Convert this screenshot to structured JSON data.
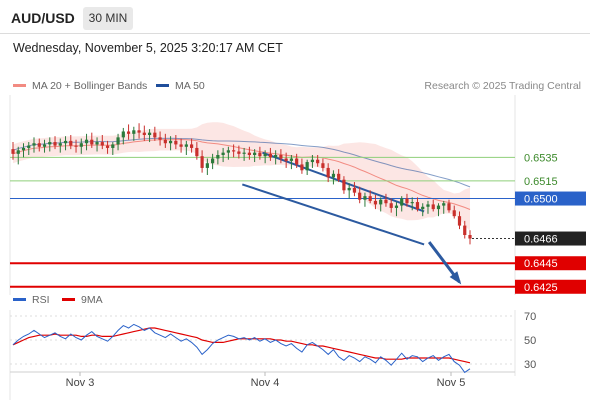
{
  "header": {
    "pair": "AUD/USD",
    "timeframe": "30 MIN",
    "datetime": "Wednesday, November 5, 2025 3:20:17 AM CET"
  },
  "legend": {
    "items": [
      {
        "label": "MA 20 + Bollinger Bands",
        "color": "#f28b82"
      },
      {
        "label": "MA 50",
        "color": "#1f4e9b"
      }
    ],
    "credit": "Research © 2025 Trading Central"
  },
  "colors": {
    "up": "#2b7a3c",
    "down": "#c9302c",
    "ma20": "#f28b82",
    "ma50": "#1f4e9b",
    "resistance": "#8fcf7a",
    "support": "#e00000",
    "pivot": "#2a62c9",
    "channel": "#2c5aa0"
  },
  "chart_data": [
    {
      "type": "candlestick",
      "ylim": [
        0.6418,
        0.6588
      ],
      "x_ticks": [
        "Nov 3",
        "Nov 4",
        "Nov 5"
      ],
      "levels": [
        {
          "value": 0.6535,
          "label": "0.6535",
          "kind": "resistance"
        },
        {
          "value": 0.6515,
          "label": "0.6515",
          "kind": "resistance"
        },
        {
          "value": 0.65,
          "label": "0.6500",
          "kind": "pivot"
        },
        {
          "value": 0.6466,
          "label": "0.6466",
          "kind": "last"
        },
        {
          "value": 0.6445,
          "label": "0.6445",
          "kind": "support"
        },
        {
          "value": 0.6425,
          "label": "0.6425",
          "kind": "support"
        }
      ],
      "channel": {
        "upper": [
          [
            0.5,
            0.6539
          ],
          [
            0.82,
            0.6489
          ]
        ],
        "lower": [
          [
            0.46,
            0.6512
          ],
          [
            0.82,
            0.6461
          ]
        ]
      },
      "forecast_arrow": [
        [
          0.83,
          0.6463
        ],
        [
          0.89,
          0.6429
        ]
      ],
      "candles": [
        [
          0.6542,
          0.6548,
          0.6533,
          0.6538
        ],
        [
          0.6538,
          0.6544,
          0.6529,
          0.6541
        ],
        [
          0.6541,
          0.6547,
          0.6535,
          0.6543
        ],
        [
          0.6543,
          0.6548,
          0.6537,
          0.6545
        ],
        [
          0.6545,
          0.6552,
          0.6539,
          0.6547
        ],
        [
          0.6547,
          0.6551,
          0.654,
          0.6544
        ],
        [
          0.6544,
          0.655,
          0.6539,
          0.6546
        ],
        [
          0.6546,
          0.6552,
          0.654,
          0.6548
        ],
        [
          0.6548,
          0.6553,
          0.6542,
          0.6545
        ],
        [
          0.6545,
          0.6551,
          0.6539,
          0.6547
        ],
        [
          0.6547,
          0.6553,
          0.6541,
          0.6549
        ],
        [
          0.6549,
          0.6554,
          0.6542,
          0.6545
        ],
        [
          0.6545,
          0.655,
          0.6539,
          0.6544
        ],
        [
          0.6544,
          0.6551,
          0.6538,
          0.6547
        ],
        [
          0.6547,
          0.6555,
          0.6541,
          0.655
        ],
        [
          0.655,
          0.6556,
          0.6543,
          0.6546
        ],
        [
          0.6546,
          0.6552,
          0.654,
          0.6548
        ],
        [
          0.6548,
          0.6554,
          0.6542,
          0.6545
        ],
        [
          0.6545,
          0.6549,
          0.6538,
          0.6543
        ],
        [
          0.6543,
          0.6548,
          0.6537,
          0.6546
        ],
        [
          0.6546,
          0.6555,
          0.6541,
          0.6552
        ],
        [
          0.6552,
          0.656,
          0.6546,
          0.6557
        ],
        [
          0.6557,
          0.6563,
          0.655,
          0.6555
        ],
        [
          0.6555,
          0.6561,
          0.6549,
          0.6558
        ],
        [
          0.6558,
          0.6564,
          0.6551,
          0.6556
        ],
        [
          0.6556,
          0.6562,
          0.6549,
          0.6554
        ],
        [
          0.6554,
          0.6559,
          0.6548,
          0.6556
        ],
        [
          0.6556,
          0.6561,
          0.6549,
          0.6552
        ],
        [
          0.6552,
          0.6557,
          0.6545,
          0.655
        ],
        [
          0.655,
          0.6555,
          0.6543,
          0.6547
        ],
        [
          0.6547,
          0.6553,
          0.6541,
          0.6549
        ],
        [
          0.6549,
          0.6554,
          0.6542,
          0.6546
        ],
        [
          0.6546,
          0.6551,
          0.6539,
          0.6544
        ],
        [
          0.6544,
          0.6549,
          0.6537,
          0.6546
        ],
        [
          0.6546,
          0.6551,
          0.6539,
          0.6543
        ],
        [
          0.6543,
          0.6548,
          0.6533,
          0.6536
        ],
        [
          0.6536,
          0.6541,
          0.6522,
          0.6526
        ],
        [
          0.6526,
          0.6534,
          0.652,
          0.653
        ],
        [
          0.653,
          0.6538,
          0.6525,
          0.6534
        ],
        [
          0.6534,
          0.6541,
          0.6529,
          0.6537
        ],
        [
          0.6537,
          0.6543,
          0.6531,
          0.6539
        ],
        [
          0.6539,
          0.6544,
          0.6533,
          0.6541
        ],
        [
          0.6541,
          0.6546,
          0.6535,
          0.654
        ],
        [
          0.654,
          0.6545,
          0.6534,
          0.6538
        ],
        [
          0.6538,
          0.6543,
          0.6532,
          0.6539
        ],
        [
          0.6539,
          0.6544,
          0.6533,
          0.6537
        ],
        [
          0.6537,
          0.6542,
          0.6531,
          0.6539
        ],
        [
          0.6539,
          0.6544,
          0.6533,
          0.6536
        ],
        [
          0.6536,
          0.6541,
          0.653,
          0.6538
        ],
        [
          0.6538,
          0.6543,
          0.6532,
          0.6535
        ],
        [
          0.6535,
          0.6541,
          0.6529,
          0.6537
        ],
        [
          0.6537,
          0.6542,
          0.653,
          0.6534
        ],
        [
          0.6534,
          0.6539,
          0.6526,
          0.6532
        ],
        [
          0.6532,
          0.6537,
          0.6525,
          0.6534
        ],
        [
          0.6534,
          0.6538,
          0.6526,
          0.6529
        ],
        [
          0.6529,
          0.6534,
          0.6521,
          0.6524
        ],
        [
          0.6524,
          0.6533,
          0.652,
          0.6531
        ],
        [
          0.6531,
          0.6537,
          0.6526,
          0.6533
        ],
        [
          0.6533,
          0.6537,
          0.6527,
          0.653
        ],
        [
          0.653,
          0.6534,
          0.6523,
          0.6526
        ],
        [
          0.6526,
          0.653,
          0.6514,
          0.6518
        ],
        [
          0.6518,
          0.6524,
          0.6512,
          0.6521
        ],
        [
          0.6521,
          0.6525,
          0.6514,
          0.6516
        ],
        [
          0.6516,
          0.6519,
          0.6504,
          0.6507
        ],
        [
          0.6507,
          0.6513,
          0.65,
          0.6509
        ],
        [
          0.6509,
          0.6514,
          0.6502,
          0.6505
        ],
        [
          0.6505,
          0.651,
          0.6496,
          0.6499
        ],
        [
          0.6499,
          0.6505,
          0.6493,
          0.6502
        ],
        [
          0.6502,
          0.6507,
          0.6496,
          0.6498
        ],
        [
          0.6498,
          0.6503,
          0.6491,
          0.6495
        ],
        [
          0.6495,
          0.6501,
          0.6489,
          0.6499
        ],
        [
          0.6499,
          0.6504,
          0.6493,
          0.6496
        ],
        [
          0.6496,
          0.65,
          0.6488,
          0.6492
        ],
        [
          0.6492,
          0.6497,
          0.6485,
          0.6494
        ],
        [
          0.6494,
          0.6502,
          0.6489,
          0.65
        ],
        [
          0.65,
          0.6504,
          0.6493,
          0.6496
        ],
        [
          0.6496,
          0.6501,
          0.649,
          0.6497
        ],
        [
          0.6497,
          0.6501,
          0.6489,
          0.6491
        ],
        [
          0.6491,
          0.6496,
          0.6485,
          0.6493
        ],
        [
          0.6493,
          0.6498,
          0.6487,
          0.6495
        ],
        [
          0.6495,
          0.6499,
          0.6489,
          0.6491
        ],
        [
          0.6491,
          0.6496,
          0.6485,
          0.6494
        ],
        [
          0.6494,
          0.6498,
          0.6487,
          0.6496
        ],
        [
          0.6496,
          0.6499,
          0.6488,
          0.649
        ],
        [
          0.649,
          0.6494,
          0.6483,
          0.6485
        ],
        [
          0.6485,
          0.6489,
          0.6474,
          0.6477
        ],
        [
          0.6477,
          0.6481,
          0.6466,
          0.6469
        ],
        [
          0.6469,
          0.6473,
          0.6461,
          0.6466
        ]
      ]
    },
    {
      "type": "line",
      "series": [
        {
          "name": "RSI",
          "color": "#2a62c9"
        },
        {
          "name": "9MA",
          "color": "#e00000"
        }
      ],
      "ylim": [
        25,
        75
      ],
      "y_ticks": [
        "70",
        "50",
        "30"
      ],
      "rsi": [
        46,
        50,
        53,
        55,
        58,
        55,
        52,
        54,
        56,
        53,
        51,
        55,
        52,
        50,
        54,
        57,
        53,
        51,
        49,
        53,
        58,
        62,
        60,
        63,
        61,
        58,
        60,
        56,
        54,
        52,
        55,
        52,
        49,
        51,
        48,
        44,
        38,
        42,
        47,
        50,
        52,
        54,
        53,
        51,
        52,
        50,
        52,
        49,
        51,
        48,
        50,
        47,
        45,
        47,
        43,
        40,
        46,
        48,
        45,
        42,
        38,
        42,
        36,
        33,
        37,
        35,
        32,
        36,
        34,
        31,
        36,
        33,
        29,
        34,
        39,
        34,
        37,
        36,
        32,
        35,
        37,
        33,
        36,
        38,
        32,
        29,
        23,
        26
      ],
      "ma9": [
        46,
        48,
        50,
        52,
        53,
        54,
        54,
        54,
        55,
        54,
        54,
        54,
        54,
        53,
        53,
        54,
        54,
        53,
        53,
        53,
        54,
        55,
        56,
        57,
        58,
        59,
        60,
        60,
        59,
        58,
        57,
        56,
        55,
        54,
        53,
        52,
        50,
        49,
        48,
        48,
        48,
        49,
        50,
        51,
        51,
        51,
        51,
        51,
        51,
        51,
        50,
        50,
        49,
        49,
        48,
        47,
        46,
        46,
        45,
        45,
        44,
        43,
        42,
        41,
        40,
        39,
        38,
        37,
        36,
        35,
        35,
        34,
        34,
        34,
        34,
        35,
        35,
        35,
        35,
        35,
        35,
        35,
        35,
        35,
        34,
        33,
        32,
        31
      ]
    }
  ]
}
